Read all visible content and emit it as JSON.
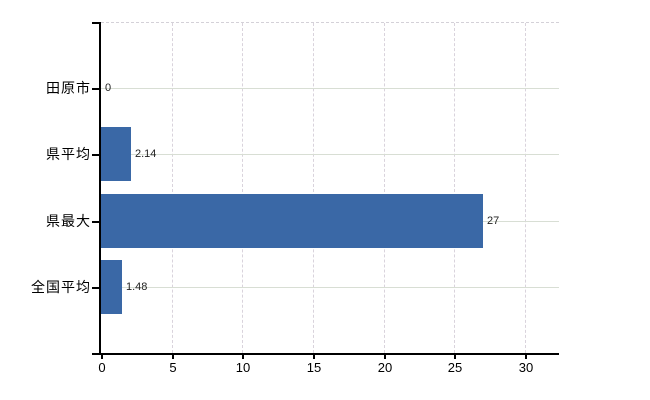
{
  "chart_data": {
    "type": "bar",
    "orientation": "horizontal",
    "title": "",
    "xlabel": "",
    "ylabel": "",
    "categories": [
      "田原市",
      "県平均",
      "県最大",
      "全国平均"
    ],
    "values": [
      0,
      2.14,
      27,
      1.48
    ],
    "value_labels": [
      "0",
      "2.14",
      "27",
      "1.48"
    ],
    "x_ticks": [
      "0",
      "5",
      "10",
      "15",
      "20",
      "25",
      "30"
    ],
    "x_tick_values": [
      0,
      5,
      10,
      15,
      20,
      25,
      30
    ],
    "xlim": [
      0,
      32.4
    ],
    "grid": "on",
    "legend": "none",
    "colors": {
      "bar": "#3a68a6",
      "axis": "#000000",
      "h_gridline": "#d8ded4",
      "v_gridline": "#d9d3dc",
      "top_border": "#d4d1d8",
      "value_label": "#222222",
      "tick_label": "#000000",
      "category_label": "#000000"
    }
  }
}
